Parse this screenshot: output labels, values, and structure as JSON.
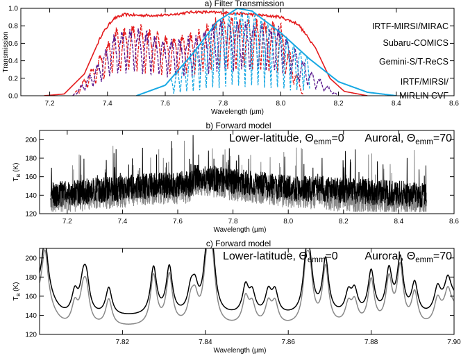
{
  "chart_data": [
    {
      "type": "line",
      "title": "a) Filter Transmission",
      "xlabel": "Wavelength (µm)",
      "ylabel": "Transmission",
      "xlim": [
        7.1,
        8.6
      ],
      "ylim": [
        0.0,
        1.0
      ],
      "xticks": [
        "7.2",
        "7.4",
        "7.6",
        "7.8",
        "8.0",
        "8.2",
        "8.4",
        "8.6"
      ],
      "yticks": [
        "0.0",
        "0.2",
        "0.4",
        "0.6",
        "0.8",
        "1.0"
      ],
      "legend_placement": "right",
      "series": [
        {
          "name": "IRTF-MIRSI/MIRAC",
          "color": "#e41a1c",
          "style": "solid",
          "x": [
            7.18,
            7.25,
            7.32,
            7.38,
            7.42,
            7.46,
            7.5,
            7.6,
            7.7,
            7.8,
            7.9,
            8.0,
            8.06,
            8.12,
            8.17,
            8.22,
            8.3
          ],
          "y": [
            0.0,
            0.02,
            0.25,
            0.7,
            0.88,
            0.93,
            0.92,
            0.92,
            0.96,
            0.95,
            0.93,
            0.9,
            0.82,
            0.55,
            0.2,
            0.05,
            0.0
          ]
        },
        {
          "name": "Subaru-COMICS",
          "color": "#e41a1c",
          "style": "dashed",
          "x": [
            7.28,
            7.35,
            7.43,
            7.5,
            7.6,
            7.7,
            7.8,
            7.9,
            8.0,
            8.08
          ],
          "y": [
            0.0,
            0.35,
            0.8,
            0.85,
            0.7,
            0.75,
            0.95,
            0.9,
            0.85,
            0.0
          ]
        },
        {
          "name": "Gemini-S/T-ReCS",
          "color": "#5b1a8e",
          "style": "dashed",
          "x": [
            7.28,
            7.35,
            7.43,
            7.5,
            7.6,
            7.7,
            7.8,
            7.9,
            8.0,
            8.1,
            8.2
          ],
          "y": [
            0.0,
            0.3,
            0.75,
            0.8,
            0.65,
            0.7,
            0.9,
            0.85,
            0.8,
            0.3,
            0.0
          ]
        },
        {
          "name": "IRTF/MIRSI/ MIRLIN CVF",
          "color": "#17a8e3",
          "style": "solid",
          "x": [
            7.5,
            7.6,
            7.7,
            7.78,
            7.85,
            7.9,
            8.0,
            8.1,
            8.2,
            8.3,
            8.4
          ],
          "y": [
            0.0,
            0.12,
            0.5,
            0.85,
            1.0,
            0.97,
            0.72,
            0.42,
            0.16,
            0.04,
            0.0
          ]
        }
      ],
      "legend_entries": [
        {
          "label": "IRTF-MIRSI/MIRAC",
          "color": "#e41a1c"
        },
        {
          "label": "Subaru-COMICS",
          "color": "#e41a1c"
        },
        {
          "label": "Gemini-S/T-ReCS",
          "color": "#5b1a8e"
        },
        {
          "label": "IRTF/MIRSI/",
          "color": "#17a8e3"
        },
        {
          "label": "MIRLIN CVF",
          "color": "#17a8e3"
        }
      ]
    },
    {
      "type": "line",
      "title": "b) Forward model",
      "xlabel": "Wavelength (µm)",
      "ylabel": "T",
      "ylabel_sub": "B",
      "ylabel_suffix": " (K)",
      "xlim": [
        7.1,
        8.6
      ],
      "ylim": [
        120,
        210
      ],
      "xticks": [
        "7.2",
        "7.4",
        "7.6",
        "7.8",
        "8.0",
        "8.2",
        "8.4",
        "8.6"
      ],
      "yticks": [
        "120",
        "140",
        "160",
        "180",
        "200"
      ],
      "legend_placement": "top",
      "series": [
        {
          "name": "Lower-latitude, Θemm=0",
          "color": "#000000",
          "x": [
            7.14,
            7.3,
            7.5,
            7.65,
            7.66,
            7.8,
            8.0,
            8.2,
            8.5
          ],
          "y": [
            140,
            145,
            150,
            152,
            160,
            155,
            148,
            145,
            140
          ]
        },
        {
          "name": "Auroral, Θemm=70",
          "color": "#888888",
          "x": [
            7.14,
            7.3,
            7.5,
            7.65,
            7.66,
            7.8,
            8.0,
            8.2,
            8.5
          ],
          "y": [
            133,
            138,
            143,
            145,
            155,
            148,
            140,
            136,
            132
          ]
        }
      ],
      "legend_entries": [
        {
          "label": "Lower-latitude, Θ",
          "sub": "emm",
          "tail": "=0",
          "color": "#000000"
        },
        {
          "label": "Auroral, Θ",
          "sub": "emm",
          "tail": "=70",
          "color": "#888888"
        }
      ]
    },
    {
      "type": "line",
      "title": "c) Forward model",
      "xlabel": "Wavelength (µm)",
      "ylabel": "T",
      "ylabel_sub": "B",
      "ylabel_suffix": " (K)",
      "xlim": [
        7.8,
        7.9
      ],
      "ylim": [
        120,
        210
      ],
      "xticks": [
        "7.82",
        "7.84",
        "7.86",
        "7.88",
        "7.90"
      ],
      "yticks": [
        "120",
        "140",
        "160",
        "180",
        "200"
      ],
      "legend_placement": "top",
      "series": [
        {
          "name": "Lower-latitude, Θemm=0",
          "color": "#000000",
          "peaks": [
            7.8013,
            7.8085,
            7.8105,
            7.8113,
            7.8167,
            7.8275,
            7.8313,
            7.8365,
            7.8375,
            7.8402,
            7.841,
            7.8418,
            7.8497,
            7.8513,
            7.8552,
            7.8568,
            7.8643,
            7.8652,
            7.869,
            7.8745,
            7.876,
            7.88,
            7.8843,
            7.887,
            7.8905,
            7.896,
            7.8985
          ],
          "peak_values": [
            195,
            162,
            168,
            172,
            168,
            190,
            190,
            162,
            163,
            178,
            185,
            180,
            168,
            160,
            162,
            162,
            188,
            183,
            198,
            160,
            162,
            185,
            185,
            198,
            172,
            162,
            162
          ],
          "baseline": 138
        },
        {
          "name": "Auroral, Θemm=70",
          "color": "#888888",
          "peaks": [
            7.8013,
            7.8085,
            7.8105,
            7.8113,
            7.8167,
            7.8275,
            7.8313,
            7.8365,
            7.8375,
            7.8402,
            7.841,
            7.8418,
            7.8497,
            7.8513,
            7.8552,
            7.8568,
            7.8643,
            7.8652,
            7.869,
            7.8745,
            7.876,
            7.88,
            7.8843,
            7.887,
            7.8905,
            7.896,
            7.8985
          ],
          "peak_values": [
            185,
            150,
            156,
            160,
            156,
            182,
            182,
            150,
            152,
            168,
            176,
            170,
            156,
            148,
            150,
            150,
            180,
            175,
            190,
            148,
            150,
            176,
            176,
            190,
            162,
            150,
            150
          ],
          "baseline": 127
        }
      ],
      "legend_entries": [
        {
          "label": "Lower-latitude, Θ",
          "sub": "emm",
          "tail": "=0",
          "color": "#000000"
        },
        {
          "label": "Auroral, Θ",
          "sub": "emm",
          "tail": "=70",
          "color": "#888888"
        }
      ]
    }
  ]
}
